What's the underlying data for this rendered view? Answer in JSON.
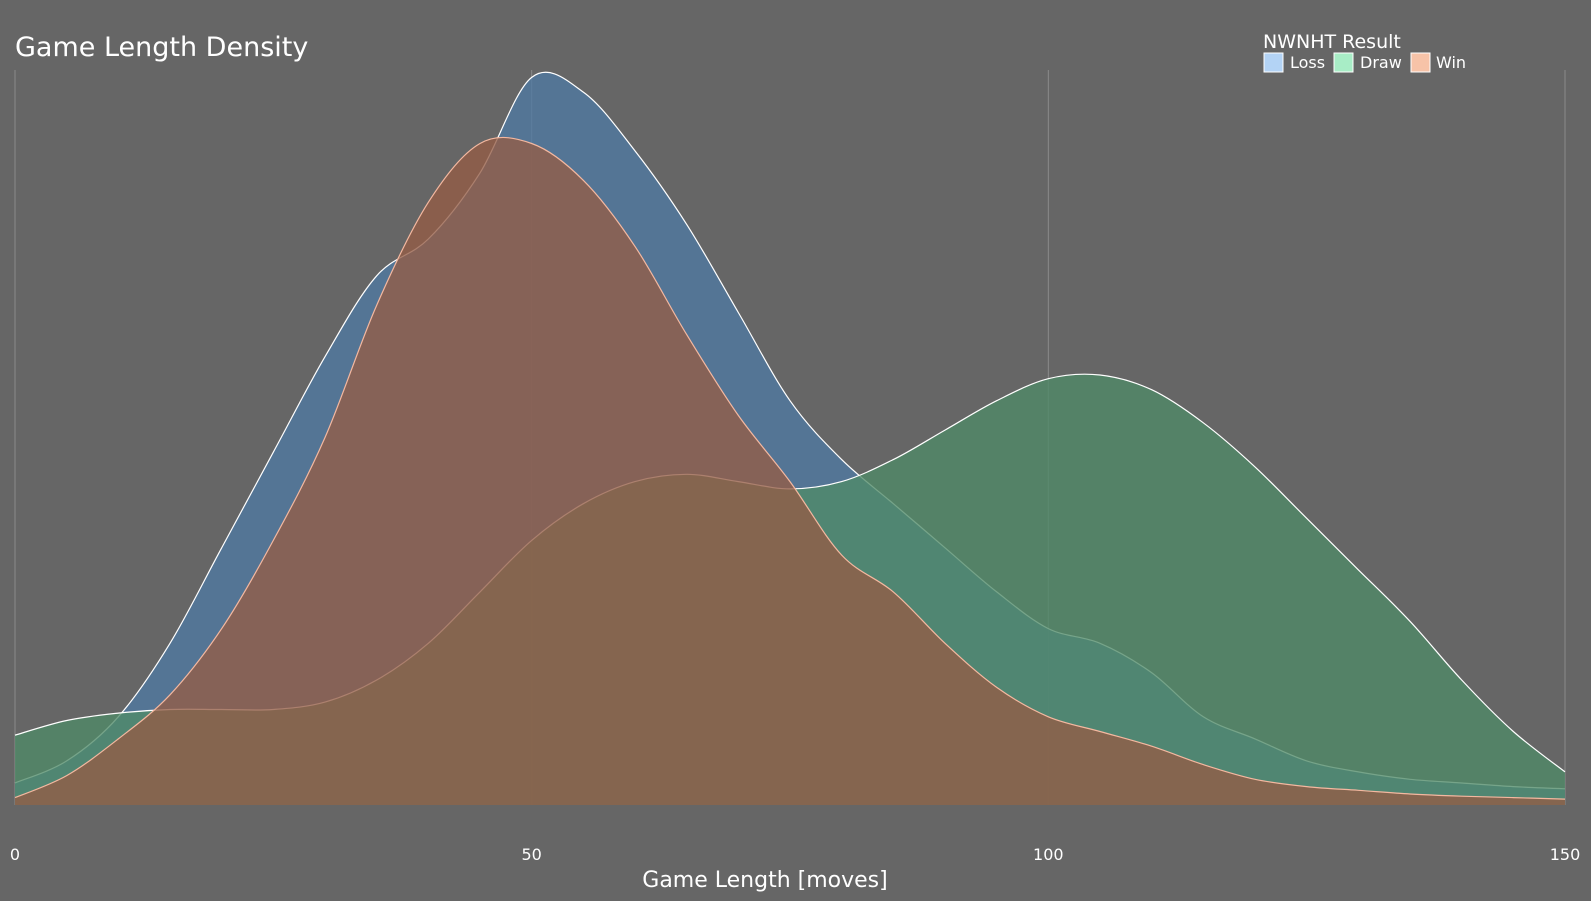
{
  "chart_data": {
    "type": "area",
    "title": "Game Length Density",
    "xlabel": "Game Length [moves]",
    "ylabel": "",
    "xlim": [
      0,
      150
    ],
    "ylim": [
      0,
      1.0
    ],
    "x_ticks": [
      "0",
      "50",
      "100",
      "150"
    ],
    "x_tick_values": [
      0,
      50,
      100,
      150
    ],
    "grid": "vertical",
    "legend": {
      "title": "NWNHT Result",
      "placement": "top-right",
      "entries": [
        "Loss",
        "Draw",
        "Win"
      ]
    },
    "x": [
      0,
      5,
      10,
      15,
      20,
      25,
      30,
      35,
      40,
      45,
      50,
      55,
      60,
      65,
      70,
      75,
      80,
      85,
      90,
      95,
      100,
      105,
      110,
      115,
      120,
      125,
      130,
      135,
      140,
      145,
      150
    ],
    "series": [
      {
        "name": "Loss",
        "fill": "#4f7aa3",
        "legend_color": "#b3d3f5",
        "stroke": "#ffffff",
        "values": [
          0.03,
          0.06,
          0.12,
          0.22,
          0.35,
          0.48,
          0.61,
          0.72,
          0.77,
          0.86,
          0.99,
          0.97,
          0.89,
          0.79,
          0.67,
          0.55,
          0.47,
          0.41,
          0.35,
          0.29,
          0.24,
          0.22,
          0.18,
          0.12,
          0.09,
          0.06,
          0.045,
          0.035,
          0.03,
          0.025,
          0.022
        ]
      },
      {
        "name": "Draw",
        "fill": "#4f8a68",
        "legend_color": "#a8edc6",
        "stroke": "#ffffff",
        "values": [
          0.095,
          0.115,
          0.125,
          0.13,
          0.13,
          0.13,
          0.14,
          0.17,
          0.22,
          0.29,
          0.36,
          0.41,
          0.44,
          0.45,
          0.44,
          0.43,
          0.44,
          0.47,
          0.51,
          0.55,
          0.58,
          0.585,
          0.565,
          0.52,
          0.46,
          0.39,
          0.32,
          0.25,
          0.17,
          0.1,
          0.045
        ]
      },
      {
        "name": "Win",
        "fill": "#955c45",
        "legend_color": "#f7c3a8",
        "stroke": "#f4b8a0",
        "values": [
          0.01,
          0.04,
          0.09,
          0.15,
          0.24,
          0.36,
          0.5,
          0.68,
          0.82,
          0.9,
          0.9,
          0.85,
          0.76,
          0.64,
          0.53,
          0.44,
          0.34,
          0.29,
          0.22,
          0.16,
          0.12,
          0.1,
          0.08,
          0.055,
          0.035,
          0.025,
          0.02,
          0.015,
          0.012,
          0.01,
          0.008
        ]
      }
    ]
  }
}
